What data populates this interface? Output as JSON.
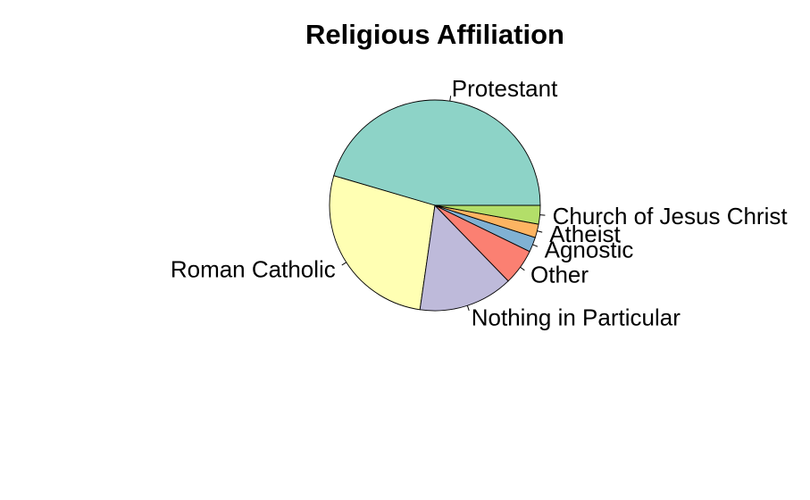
{
  "chart_data": {
    "type": "pie",
    "title": "Religious Affiliation",
    "start_angle_deg": 0,
    "direction": "counterclockwise",
    "slices": [
      {
        "label": "Protestant",
        "value": 46.0,
        "color": "#8DD3C7"
      },
      {
        "label": "Roman Catholic",
        "value": 27.6,
        "color": "#FFFFB3"
      },
      {
        "label": "Nothing in Particular",
        "value": 14.7,
        "color": "#BEBADA"
      },
      {
        "label": "Other",
        "value": 5.6,
        "color": "#FB8072"
      },
      {
        "label": "Agnostic",
        "value": 2.3,
        "color": "#80B1D3"
      },
      {
        "label": "Atheist",
        "value": 2.1,
        "color": "#FDB462"
      },
      {
        "label": "Church of Jesus Christ",
        "value": 2.9,
        "color": "#B3DE69"
      }
    ]
  }
}
